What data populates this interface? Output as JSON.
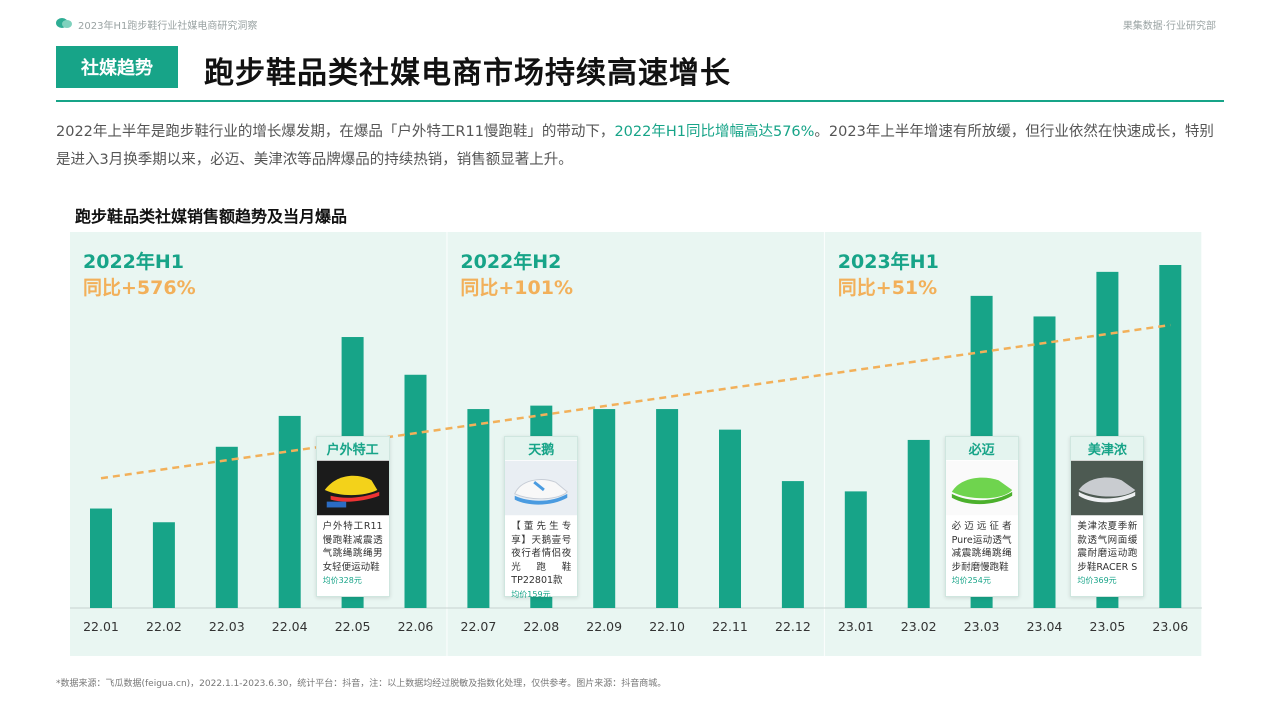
{
  "header": {
    "report_title": "2023年H1跑步鞋行业社媒电商研究洞察",
    "department": "果集数据·行业研究部"
  },
  "section_tag": "社媒趋势",
  "headline": "跑步鞋品类社媒电商市场持续高速增长",
  "description": {
    "part1": "2022年上半年是跑步鞋行业的增长爆发期，在爆品「户外特工R11慢跑鞋」的带动下，",
    "highlight": "2022年H1同比增幅高达576%",
    "part2": "。2023年上半年增速有所放缓，但行业依然在快速成长，特别是进入3月换季期以来，必迈、美津浓等品牌爆品的持续热销，销售额显著上升。"
  },
  "colors": {
    "accent": "#17a488",
    "bar": "#17a488",
    "panel_bg": "#e9f6f2",
    "yoy_text": "#f2b05a",
    "trend_line": "#f2b05a"
  },
  "chart_data": {
    "type": "bar",
    "title": "跑步鞋品类社媒销售额趋势及当月爆品",
    "categories": [
      "22.01",
      "22.02",
      "22.03",
      "22.04",
      "22.05",
      "22.06",
      "22.07",
      "22.08",
      "22.09",
      "22.10",
      "22.11",
      "22.12",
      "23.01",
      "23.02",
      "23.03",
      "23.04",
      "23.05",
      "23.06"
    ],
    "values": [
      29,
      25,
      47,
      56,
      79,
      68,
      58,
      59,
      58,
      58,
      52,
      37,
      34,
      49,
      91,
      85,
      98,
      100
    ],
    "ylim": [
      0,
      105
    ],
    "trend_line": true,
    "periods": [
      {
        "label": "2022年H1",
        "yoy": "同比+576%",
        "start": 0,
        "end": 5
      },
      {
        "label": "2022年H2",
        "yoy": "同比+101%",
        "start": 6,
        "end": 11
      },
      {
        "label": "2023年H1",
        "yoy": "同比+51%",
        "start": 12,
        "end": 17
      }
    ]
  },
  "products": [
    {
      "brand": "户外特工",
      "month_index": 4,
      "desc": "户外特工R11慢跑鞋减震透气跳绳跳绳男女轻便运动鞋",
      "price": "均价328元",
      "image": "yellow-running-shoe"
    },
    {
      "brand": "天鹅",
      "month_index": 7,
      "desc": "【董先生专享】天鹅壹号夜行者情侣夜光跑鞋TP22801款",
      "price": "均价159元",
      "image": "white-blue-running-shoe"
    },
    {
      "brand": "必迈",
      "month_index": 14,
      "desc": "必迈远征者Pure运动透气减震跳绳跳绳步耐磨慢跑鞋",
      "price": "均价254元",
      "image": "green-running-shoe"
    },
    {
      "brand": "美津浓",
      "month_index": 16,
      "desc": "美津浓夏季新款透气网面缓震耐磨运动跑步鞋RACER S",
      "price": "均价369元",
      "image": "grey-running-shoe"
    }
  ],
  "footnote": "*数据来源：飞瓜数据(feigua.cn)，2022.1.1-2023.6.30，统计平台：抖音，注：以上数据均经过脱敏及指数化处理，仅供参考。图片来源：抖音商城。"
}
